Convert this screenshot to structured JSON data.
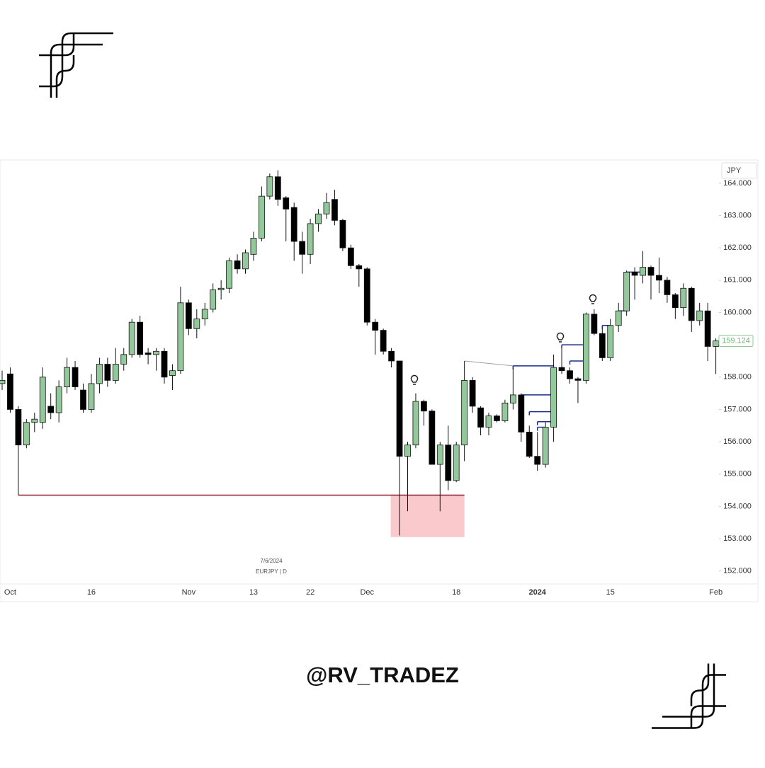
{
  "chart_data": {
    "type": "candlestick",
    "symbol_watermark": "EURJPY | D",
    "date_watermark": "7/6/2024",
    "currency": "JPY",
    "categories": [
      null,
      "Oct",
      null,
      null,
      null,
      null,
      null,
      null,
      null,
      null,
      null,
      "16",
      null,
      null,
      null,
      null,
      null,
      null,
      null,
      null,
      null,
      null,
      null,
      "Nov",
      null,
      null,
      null,
      null,
      null,
      null,
      null,
      "13",
      null,
      null,
      null,
      null,
      null,
      null,
      "22",
      null,
      null,
      null,
      null,
      null,
      null,
      "Dec",
      null,
      null,
      null,
      null,
      null,
      null,
      null,
      null,
      null,
      null,
      "18",
      null,
      null,
      null,
      null,
      null,
      null,
      null,
      null,
      null,
      "2024",
      null,
      null,
      null,
      null,
      null,
      null,
      null,
      null,
      "15",
      null,
      null,
      null,
      null,
      null,
      null,
      null,
      null,
      null,
      null,
      null,
      null,
      "Feb"
    ],
    "open": [
      157.8,
      158.1,
      157.0,
      155.9,
      156.6,
      156.6,
      157.1,
      156.9,
      157.7,
      158.3,
      157.6,
      157.0,
      157.8,
      158.4,
      157.9,
      158.4,
      158.7,
      159.7,
      158.75,
      158.7,
      158.8,
      158.05,
      158.2,
      160.3,
      159.5,
      159.8,
      160.1,
      160.7,
      160.75,
      161.6,
      161.35,
      161.8,
      162.3,
      163.6,
      164.2,
      163.55,
      163.25,
      162.2,
      161.8,
      162.75,
      163.05,
      163.5,
      162.85,
      162.0,
      161.45,
      161.35,
      159.7,
      159.45,
      158.8,
      158.5,
      155.55,
      155.9,
      157.25,
      156.95,
      155.3,
      155.9,
      154.8,
      155.9,
      157.9,
      157.05,
      156.45,
      156.8,
      156.65,
      157.2,
      157.45,
      156.3,
      155.55,
      155.3,
      156.45,
      158.3,
      158.2,
      157.95,
      157.9,
      159.95,
      159.35,
      158.6,
      159.6,
      160.05,
      161.25,
      161.15,
      161.4,
      161.15,
      161.0,
      160.55,
      160.15,
      160.75,
      159.75,
      160.05,
      158.95
    ],
    "high": [
      158.2,
      158.3,
      157.1,
      156.7,
      156.9,
      158.3,
      157.5,
      157.9,
      158.6,
      158.5,
      157.8,
      158.1,
      158.6,
      158.6,
      158.9,
      158.9,
      159.8,
      159.9,
      158.9,
      158.9,
      158.9,
      158.4,
      160.8,
      160.4,
      160.1,
      160.3,
      160.9,
      161.0,
      161.7,
      161.8,
      161.95,
      162.5,
      163.9,
      164.3,
      164.4,
      163.6,
      163.4,
      162.5,
      162.9,
      163.2,
      163.7,
      163.8,
      162.9,
      162.1,
      161.5,
      161.4,
      159.8,
      159.5,
      158.9,
      158.5,
      156.0,
      157.5,
      157.3,
      157.0,
      156.0,
      156.5,
      156.0,
      158.5,
      158.0,
      157.1,
      156.9,
      156.85,
      157.3,
      158.3,
      157.5,
      156.5,
      156.3,
      156.6,
      158.7,
      158.9,
      158.3,
      158.0,
      160.0,
      160.1,
      159.5,
      159.8,
      160.3,
      161.3,
      161.4,
      161.9,
      161.45,
      161.7,
      161.1,
      160.6,
      160.9,
      160.8,
      160.3,
      160.3,
      159.2
    ],
    "low": [
      157.6,
      156.9,
      154.35,
      155.8,
      156.3,
      156.4,
      156.7,
      156.6,
      157.5,
      157.6,
      156.9,
      156.9,
      157.5,
      157.7,
      157.8,
      158.2,
      158.6,
      158.6,
      158.4,
      158.2,
      157.8,
      157.6,
      158.1,
      159.3,
      159.2,
      159.6,
      160.0,
      160.4,
      160.6,
      161.2,
      161.2,
      161.6,
      162.2,
      163.5,
      163.3,
      162.2,
      161.6,
      161.2,
      161.5,
      162.5,
      162.9,
      162.7,
      161.9,
      161.35,
      160.8,
      159.6,
      158.7,
      158.7,
      158.3,
      153.1,
      153.85,
      155.8,
      156.5,
      155.3,
      153.85,
      154.5,
      154.75,
      155.4,
      156.9,
      156.2,
      156.2,
      156.6,
      156.6,
      157.0,
      156.0,
      155.5,
      155.1,
      155.2,
      156.0,
      158.1,
      157.8,
      157.2,
      157.8,
      159.3,
      158.5,
      158.5,
      159.4,
      159.9,
      160.4,
      160.9,
      160.4,
      160.6,
      160.3,
      159.8,
      159.9,
      159.4,
      159.6,
      158.5,
      158.1
    ],
    "close": [
      157.9,
      157.0,
      155.9,
      156.6,
      156.7,
      158.0,
      156.9,
      157.7,
      158.3,
      157.7,
      157.0,
      157.8,
      158.4,
      157.9,
      158.4,
      158.7,
      159.7,
      158.7,
      158.7,
      158.8,
      158.0,
      158.2,
      160.3,
      159.5,
      159.8,
      160.1,
      160.7,
      160.75,
      161.6,
      161.35,
      161.85,
      162.3,
      163.6,
      164.2,
      163.5,
      163.2,
      162.2,
      161.8,
      162.75,
      163.05,
      163.4,
      162.85,
      162.0,
      161.45,
      161.35,
      159.7,
      159.45,
      158.8,
      158.5,
      155.55,
      155.9,
      157.25,
      156.95,
      155.3,
      155.9,
      154.8,
      155.9,
      157.9,
      157.1,
      156.45,
      156.8,
      156.65,
      157.2,
      157.45,
      156.3,
      155.55,
      155.3,
      156.45,
      158.3,
      158.2,
      157.95,
      157.9,
      159.95,
      159.35,
      158.6,
      159.6,
      160.05,
      161.25,
      161.15,
      161.4,
      161.15,
      161.0,
      160.55,
      160.15,
      160.75,
      159.75,
      160.05,
      158.95,
      159.12
    ],
    "last_price": 159.124,
    "up_color": "#93c89a",
    "down_color": "#000000",
    "wick_color": "#111111",
    "ylim": [
      151.6,
      164.72
    ],
    "yticks": [
      {
        "value": 152,
        "label": "152.000"
      },
      {
        "value": 153,
        "label": "153.000"
      },
      {
        "value": 154,
        "label": "154.000"
      },
      {
        "value": 155,
        "label": "155.000"
      },
      {
        "value": 156,
        "label": "156.000"
      },
      {
        "value": 157,
        "label": "157.000"
      },
      {
        "value": 158,
        "label": "158.000"
      },
      {
        "value": 159,
        "label": "159.000"
      },
      {
        "value": 160,
        "label": "160.000"
      },
      {
        "value": 161,
        "label": "161.000"
      },
      {
        "value": 162,
        "label": "162.000"
      },
      {
        "value": 163,
        "label": "163.000"
      },
      {
        "value": 164,
        "label": "164.000"
      }
    ],
    "grid": false,
    "support": {
      "price": 154.35,
      "from": 2,
      "to": 57,
      "color": "#8b1a2b"
    },
    "zone": {
      "low": 153.05,
      "high": 154.35,
      "from": 48,
      "to": 57,
      "color": "#f9c9cc"
    },
    "trend_line": {
      "from": 57,
      "to": 63,
      "start": 158.5,
      "end": 158.35,
      "color": "#a0a0a0"
    },
    "level_color": "#1a2e8a",
    "levels": [
      {
        "price": 158.35,
        "from": 63,
        "to": 68
      },
      {
        "price": 159.0,
        "from": 69,
        "to": 72
      },
      {
        "price": 158.5,
        "from": 70,
        "to": 72
      },
      {
        "price": 157.45,
        "from": 64,
        "to": 68
      },
      {
        "price": 156.93,
        "from": 65,
        "to": 68
      },
      {
        "price": 156.62,
        "from": 66,
        "to": 68
      },
      {
        "price": 156.45,
        "from": 66,
        "to": 67
      },
      {
        "price": 159.6,
        "from": 74,
        "to": 75
      },
      {
        "price": 160.05,
        "from": 76,
        "to": 77
      },
      {
        "price": 161.25,
        "from": 77,
        "to": 79
      }
    ]
  },
  "footer": {
    "handle": "@RV_TRADEZ"
  }
}
